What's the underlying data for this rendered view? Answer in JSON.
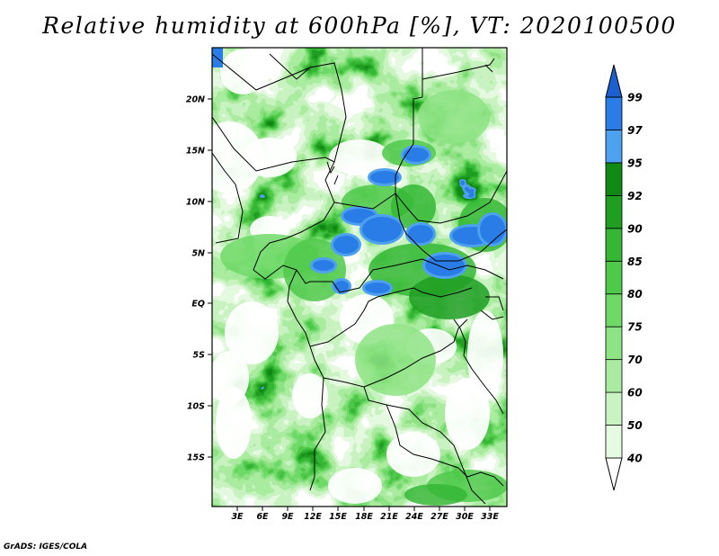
{
  "title": "Relative humidity at 600hPa [%], VT: 2020100500",
  "credit": "GrADS: IGES/COLA",
  "map": {
    "lon_range": [
      0,
      35
    ],
    "lat_range": [
      -20,
      24.5
    ],
    "lat_ticks": [
      "20N",
      "15N",
      "10N",
      "5N",
      "EQ",
      "5S",
      "10S",
      "15S"
    ],
    "lon_ticks": [
      "3E",
      "6E",
      "9E",
      "12E",
      "15E",
      "18E",
      "21E",
      "24E",
      "27E",
      "30E",
      "33E"
    ]
  },
  "colorbar": {
    "levels": [
      "40",
      "50",
      "60",
      "70",
      "75",
      "80",
      "85",
      "90",
      "92",
      "95",
      "97",
      "99"
    ],
    "colors": [
      "#ffffff",
      "#e5fae0",
      "#c9f3c0",
      "#a9eba0",
      "#8ee384",
      "#6ed967",
      "#4fc94a",
      "#35b735",
      "#1f9e22",
      "#108a14",
      "#4ea1ee",
      "#2a7de6",
      "#1c5fcf"
    ]
  }
}
